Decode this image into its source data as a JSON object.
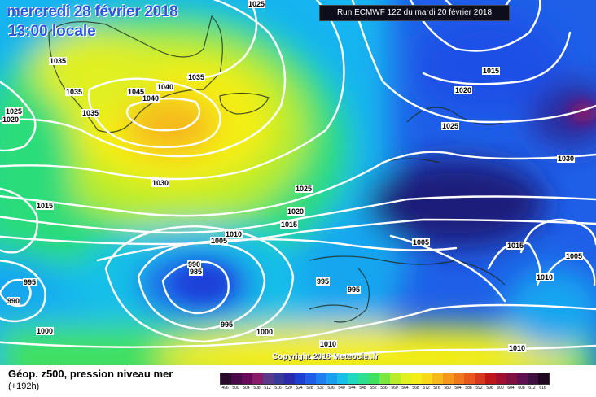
{
  "map": {
    "title_date": "mercredi 28 février 2018",
    "title_time": "13:00 locale",
    "run_info": "Run ECMWF 12Z du mardi 20 février 2018",
    "copyright": "Copyright 2018 Meteociel.fr",
    "isobar_labels": [
      "1025",
      "1035",
      "1025",
      "1020",
      "1035",
      "1045",
      "1040",
      "1040",
      "1035",
      "1035",
      "1030",
      "1015",
      "1000",
      "995",
      "990",
      "990",
      "985",
      "995",
      "1005",
      "1010",
      "1015",
      "1020",
      "1025",
      "1030",
      "1020",
      "1025",
      "1015",
      "1030",
      "1005",
      "1015",
      "1010",
      "1005",
      "995",
      "995",
      "1000",
      "1010",
      "1010"
    ],
    "colors": {
      "deep_low": "#1e1e8c",
      "low": "#1f4fe6",
      "mid_low": "#18a6f0",
      "mid": "#2cdc7a",
      "mid_high": "#b8ec2a",
      "high": "#f4ee18",
      "very_high": "#f6b81c",
      "isobar": "#ffffff"
    }
  },
  "footer": {
    "title": "Géop. z500, pression niveau mer",
    "step": "(+192h)"
  },
  "scale": {
    "labels": [
      "496",
      "500",
      "504",
      "508",
      "512",
      "516",
      "520",
      "524",
      "528",
      "532",
      "536",
      "540",
      "544",
      "548",
      "552",
      "556",
      "560",
      "564",
      "568",
      "572",
      "576",
      "580",
      "584",
      "588",
      "592",
      "596",
      "600",
      "604",
      "608",
      "612",
      "616"
    ],
    "colors": [
      "#2a0a2a",
      "#4a0a4a",
      "#6a0a5a",
      "#8a1a6a",
      "#5a3a8a",
      "#3a3a9a",
      "#2a2aaa",
      "#1f3fd0",
      "#1f5fe8",
      "#1f7ff0",
      "#1aa0f0",
      "#18c0e8",
      "#20d8c0",
      "#2ce090",
      "#40e060",
      "#7ae840",
      "#b8ec2a",
      "#e0f020",
      "#f4ee18",
      "#f8d818",
      "#f6b81c",
      "#f4981c",
      "#f0781c",
      "#e8581c",
      "#d8381c",
      "#c01818",
      "#a01030",
      "#801040",
      "#601050",
      "#401040",
      "#200820"
    ]
  }
}
